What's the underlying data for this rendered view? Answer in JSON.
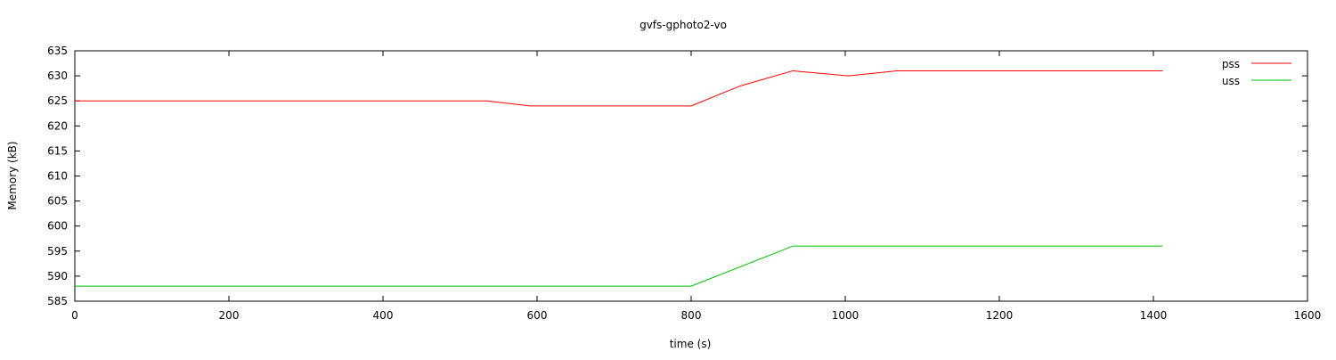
{
  "chart_data": {
    "type": "line",
    "title": "gvfs-gphoto2-vo",
    "xlabel": "time (s)",
    "ylabel": "Memory (kB)",
    "xlim": [
      0,
      1600
    ],
    "ylim": [
      585,
      635
    ],
    "xticks": [
      0,
      200,
      400,
      600,
      800,
      1000,
      1200,
      1400,
      1600
    ],
    "yticks": [
      585,
      590,
      595,
      600,
      605,
      610,
      615,
      620,
      625,
      630,
      635
    ],
    "legend_position": "top-right",
    "grid": false,
    "series": [
      {
        "name": "pss",
        "color": "#ff0000",
        "x": [
          0,
          535,
          591,
          800,
          864,
          932,
          1004,
          1067,
          1412
        ],
        "y": [
          625,
          625,
          624,
          624,
          628,
          631,
          630,
          631,
          631
        ]
      },
      {
        "name": "uss",
        "color": "#00c000",
        "x": [
          0,
          800,
          932,
          1412
        ],
        "y": [
          588,
          588,
          596,
          596
        ]
      }
    ]
  }
}
